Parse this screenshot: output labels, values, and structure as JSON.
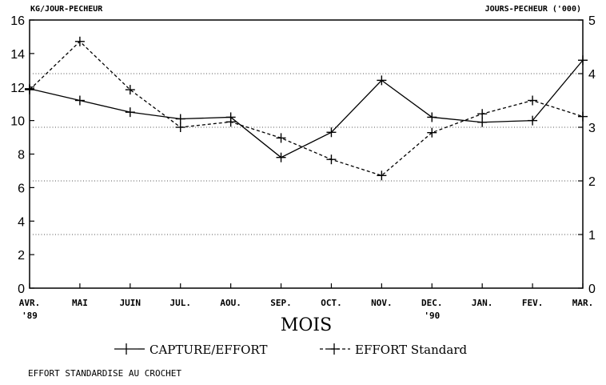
{
  "chart_data": {
    "type": "line",
    "left_axis_title": "KG/JOUR-PECHEUR",
    "right_axis_title": "JOURS-PECHEUR ('000)",
    "xlabel": "MOIS",
    "footnote": "EFFORT STANDARDISE AU CROCHET",
    "categories": [
      "AVR.",
      "MAI",
      "JUIN",
      "JUL.",
      "AOU.",
      "SEP.",
      "OCT.",
      "NOV.",
      "DEC.",
      "JAN.",
      "FEV.",
      "MAR."
    ],
    "year_labels": [
      {
        "index": 0,
        "text": "'89"
      },
      {
        "index": 8,
        "text": "'90"
      }
    ],
    "y_left": {
      "min": 0,
      "max": 16,
      "ticks": [
        0,
        2,
        4,
        6,
        8,
        10,
        12,
        14,
        16
      ]
    },
    "y_right": {
      "min": 0,
      "max": 5,
      "ticks": [
        0,
        1,
        2,
        3,
        4,
        5
      ]
    },
    "grid": "dotted horizontal",
    "legend_position": "bottom",
    "series": [
      {
        "name": "CAPTURE/EFFORT",
        "axis": "left",
        "style": "solid",
        "values": [
          11.9,
          11.2,
          10.5,
          10.1,
          10.2,
          7.8,
          9.3,
          12.4,
          10.2,
          9.9,
          10.0,
          13.6
        ]
      },
      {
        "name": "EFFORT Standard",
        "axis": "right",
        "style": "dashed",
        "values": [
          3.7,
          4.6,
          3.7,
          3.0,
          3.1,
          2.8,
          2.4,
          2.1,
          2.9,
          3.25,
          3.5,
          3.2
        ]
      }
    ]
  }
}
